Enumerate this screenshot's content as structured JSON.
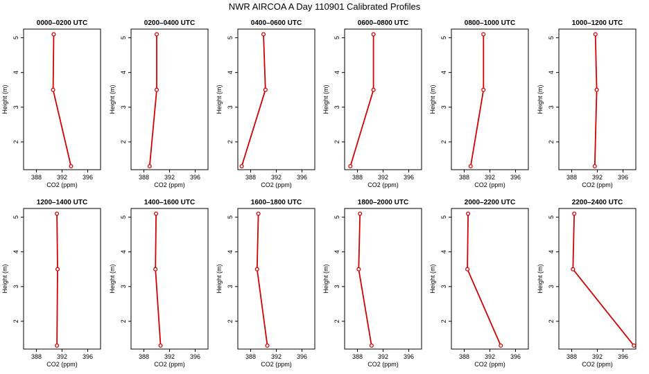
{
  "title": "NWR AIRCOA A  Day 110901  Calibrated Profiles",
  "colors": {
    "series": "#d40000",
    "frame": "#000000",
    "background": "#ffffff"
  },
  "chart_data": [
    {
      "type": "line",
      "title": "0000–0200 UTC",
      "xlabel": "CO2 (ppm)",
      "ylabel": "Height (m)",
      "xlim": [
        386,
        398
      ],
      "ylim": [
        1.2,
        5.25
      ],
      "xticks": [
        388,
        392,
        396
      ],
      "yticks": [
        2,
        3,
        4,
        5
      ],
      "grid": false,
      "x": [
        390.7,
        390.6,
        393.4
      ],
      "y": [
        5.1,
        3.5,
        1.3
      ]
    },
    {
      "type": "line",
      "title": "0200–0400 UTC",
      "xlabel": "CO2 (ppm)",
      "ylabel": "Height (m)",
      "xlim": [
        386,
        398
      ],
      "ylim": [
        1.2,
        5.25
      ],
      "xticks": [
        388,
        392,
        396
      ],
      "yticks": [
        2,
        3,
        4,
        5
      ],
      "grid": false,
      "x": [
        390.0,
        390.0,
        388.9
      ],
      "y": [
        5.1,
        3.5,
        1.3
      ]
    },
    {
      "type": "line",
      "title": "0400–0600 UTC",
      "xlabel": "CO2 (ppm)",
      "ylabel": "Height (m)",
      "xlim": [
        386,
        398
      ],
      "ylim": [
        1.2,
        5.25
      ],
      "xticks": [
        388,
        392,
        396
      ],
      "yticks": [
        2,
        3,
        4,
        5
      ],
      "grid": false,
      "x": [
        390.0,
        390.3,
        386.6
      ],
      "y": [
        5.1,
        3.5,
        1.3
      ]
    },
    {
      "type": "line",
      "title": "0600–0800 UTC",
      "xlabel": "CO2 (ppm)",
      "ylabel": "Height (m)",
      "xlim": [
        386,
        398
      ],
      "ylim": [
        1.2,
        5.25
      ],
      "xticks": [
        388,
        392,
        396
      ],
      "yticks": [
        2,
        3,
        4,
        5
      ],
      "grid": false,
      "x": [
        390.5,
        390.5,
        386.9
      ],
      "y": [
        5.1,
        3.5,
        1.3
      ]
    },
    {
      "type": "line",
      "title": "0800–1000 UTC",
      "xlabel": "CO2 (ppm)",
      "ylabel": "Height (m)",
      "xlim": [
        386,
        398
      ],
      "ylim": [
        1.2,
        5.25
      ],
      "xticks": [
        388,
        392,
        396
      ],
      "yticks": [
        2,
        3,
        4,
        5
      ],
      "grid": false,
      "x": [
        391.0,
        391.0,
        389.0
      ],
      "y": [
        5.1,
        3.5,
        1.3
      ]
    },
    {
      "type": "line",
      "title": "1000–1200 UTC",
      "xlabel": "CO2 (ppm)",
      "ylabel": "Height (m)",
      "xlim": [
        386,
        398
      ],
      "ylim": [
        1.2,
        5.25
      ],
      "xticks": [
        388,
        392,
        396
      ],
      "yticks": [
        2,
        3,
        4,
        5
      ],
      "grid": false,
      "x": [
        391.7,
        391.9,
        391.6
      ],
      "y": [
        5.1,
        3.5,
        1.3
      ]
    },
    {
      "type": "line",
      "title": "1200–1400 UTC",
      "xlabel": "CO2 (ppm)",
      "ylabel": "Height (m)",
      "xlim": [
        386,
        398
      ],
      "ylim": [
        1.2,
        5.25
      ],
      "xticks": [
        388,
        392,
        396
      ],
      "yticks": [
        2,
        3,
        4,
        5
      ],
      "grid": false,
      "x": [
        391.2,
        391.3,
        391.2
      ],
      "y": [
        5.1,
        3.5,
        1.3
      ]
    },
    {
      "type": "line",
      "title": "1400–1600 UTC",
      "xlabel": "CO2 (ppm)",
      "ylabel": "Height (m)",
      "xlim": [
        386,
        398
      ],
      "ylim": [
        1.2,
        5.25
      ],
      "xticks": [
        388,
        392,
        396
      ],
      "yticks": [
        2,
        3,
        4,
        5
      ],
      "grid": false,
      "x": [
        389.9,
        389.8,
        390.6
      ],
      "y": [
        5.1,
        3.5,
        1.3
      ]
    },
    {
      "type": "line",
      "title": "1600–1800 UTC",
      "xlabel": "CO2 (ppm)",
      "ylabel": "Height (m)",
      "xlim": [
        386,
        398
      ],
      "ylim": [
        1.2,
        5.25
      ],
      "xticks": [
        388,
        392,
        396
      ],
      "yticks": [
        2,
        3,
        4,
        5
      ],
      "grid": false,
      "x": [
        389.2,
        389.0,
        390.6
      ],
      "y": [
        5.1,
        3.5,
        1.3
      ]
    },
    {
      "type": "line",
      "title": "1800–2000 UTC",
      "xlabel": "CO2 (ppm)",
      "ylabel": "Height (m)",
      "xlim": [
        386,
        398
      ],
      "ylim": [
        1.2,
        5.25
      ],
      "xticks": [
        388,
        392,
        396
      ],
      "yticks": [
        2,
        3,
        4,
        5
      ],
      "grid": false,
      "x": [
        388.4,
        388.2,
        390.2
      ],
      "y": [
        5.1,
        3.5,
        1.3
      ]
    },
    {
      "type": "line",
      "title": "2000–2200 UTC",
      "xlabel": "CO2 (ppm)",
      "ylabel": "Height (m)",
      "xlim": [
        386,
        398
      ],
      "ylim": [
        1.2,
        5.25
      ],
      "xticks": [
        388,
        392,
        396
      ],
      "yticks": [
        2,
        3,
        4,
        5
      ],
      "grid": false,
      "x": [
        388.6,
        388.5,
        393.7
      ],
      "y": [
        5.1,
        3.5,
        1.3
      ]
    },
    {
      "type": "line",
      "title": "2200–2400 UTC",
      "xlabel": "CO2 (ppm)",
      "ylabel": "Height (m)",
      "xlim": [
        386,
        398
      ],
      "ylim": [
        1.2,
        5.25
      ],
      "xticks": [
        388,
        392,
        396
      ],
      "yticks": [
        2,
        3,
        4,
        5
      ],
      "grid": false,
      "x": [
        388.4,
        388.2,
        397.7
      ],
      "y": [
        5.1,
        3.5,
        1.3
      ]
    }
  ]
}
